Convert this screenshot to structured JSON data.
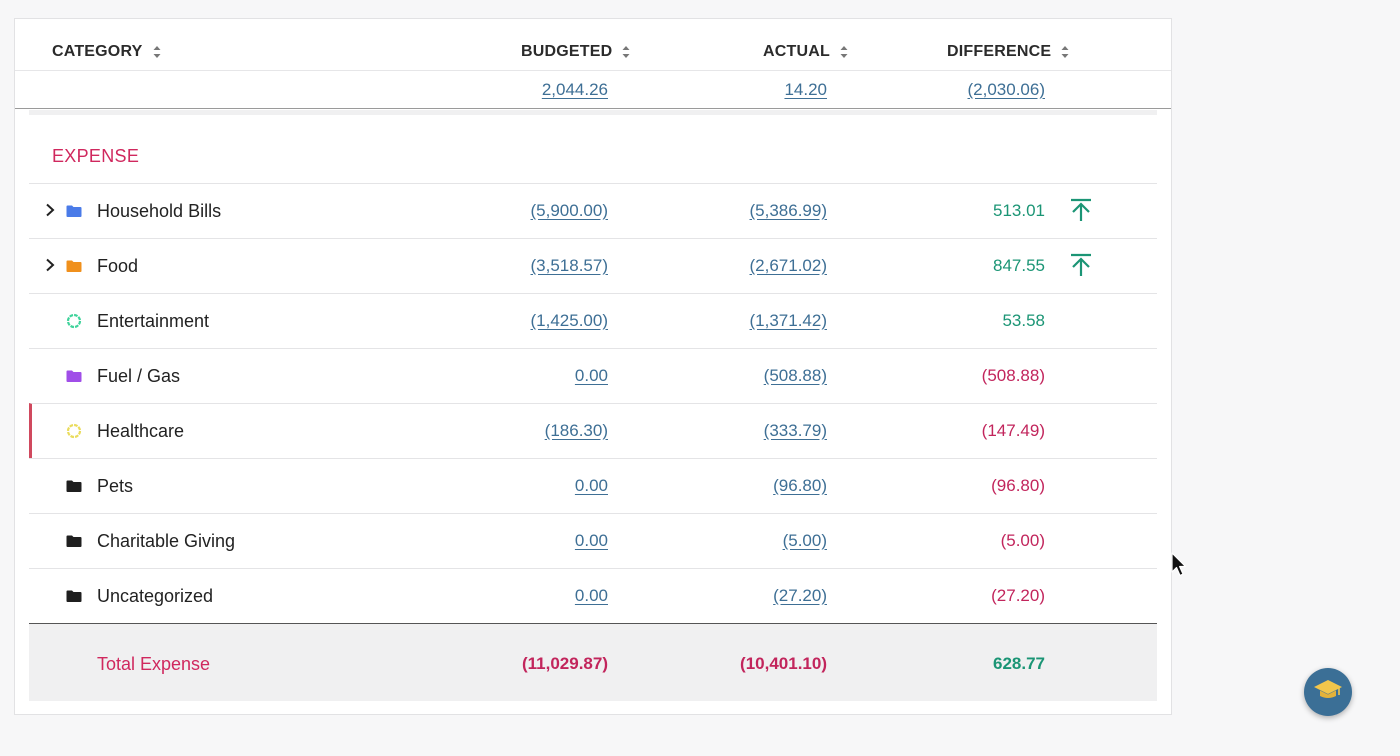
{
  "header": {
    "category": "CATEGORY",
    "budgeted": "BUDGETED",
    "actual": "ACTUAL",
    "difference": "DIFFERENCE"
  },
  "totals": {
    "budgeted": "2,044.26",
    "actual": "14.20",
    "difference": "(2,030.06)"
  },
  "section": {
    "title": "EXPENSE"
  },
  "rows": [
    {
      "name": "Household Bills",
      "budgeted": "(5,900.00)",
      "actual": "(5,386.99)",
      "difference": "513.01",
      "icon": "folder-icon",
      "icon_color": "#4a7be8",
      "expandable": true,
      "arrow": true,
      "diff_state": "positive"
    },
    {
      "name": "Food",
      "budgeted": "(3,518.57)",
      "actual": "(2,671.02)",
      "difference": "847.55",
      "icon": "folder-icon",
      "icon_color": "#f0901c",
      "expandable": true,
      "arrow": true,
      "diff_state": "positive"
    },
    {
      "name": "Entertainment",
      "budgeted": "(1,425.00)",
      "actual": "(1,371.42)",
      "difference": "53.58",
      "icon": "progress-ring-icon",
      "icon_color": "#3fd39b",
      "expandable": false,
      "arrow": false,
      "diff_state": "positive"
    },
    {
      "name": "Fuel / Gas",
      "budgeted": "0.00",
      "actual": "(508.88)",
      "difference": "(508.88)",
      "icon": "folder-icon",
      "icon_color": "#a04ee8",
      "expandable": false,
      "arrow": false,
      "diff_state": "negative"
    },
    {
      "name": "Healthcare",
      "budgeted": "(186.30)",
      "actual": "(333.79)",
      "difference": "(147.49)",
      "icon": "progress-ring-icon",
      "icon_color": "#eadc5c",
      "expandable": false,
      "arrow": false,
      "diff_state": "negative",
      "flagged": true
    },
    {
      "name": "Pets",
      "budgeted": "0.00",
      "actual": "(96.80)",
      "difference": "(96.80)",
      "icon": "folder-icon",
      "icon_color": "#1f1f1f",
      "expandable": false,
      "arrow": false,
      "diff_state": "negative"
    },
    {
      "name": "Charitable Giving",
      "budgeted": "0.00",
      "actual": "(5.00)",
      "difference": "(5.00)",
      "icon": "folder-icon",
      "icon_color": "#1f1f1f",
      "expandable": false,
      "arrow": false,
      "diff_state": "negative"
    },
    {
      "name": "Uncategorized",
      "budgeted": "0.00",
      "actual": "(27.20)",
      "difference": "(27.20)",
      "icon": "folder-icon",
      "icon_color": "#1f1f1f",
      "expandable": false,
      "arrow": false,
      "diff_state": "negative"
    }
  ],
  "total_expense": {
    "label": "Total Expense",
    "budgeted": "(11,029.87)",
    "actual": "(10,401.10)",
    "difference": "628.77"
  },
  "colors": {
    "positive": "#1b9575",
    "negative": "#c2255c",
    "link": "#3e6f95",
    "fab": "#3b6f96"
  },
  "fab": {
    "icon": "graduation-cap-icon"
  }
}
